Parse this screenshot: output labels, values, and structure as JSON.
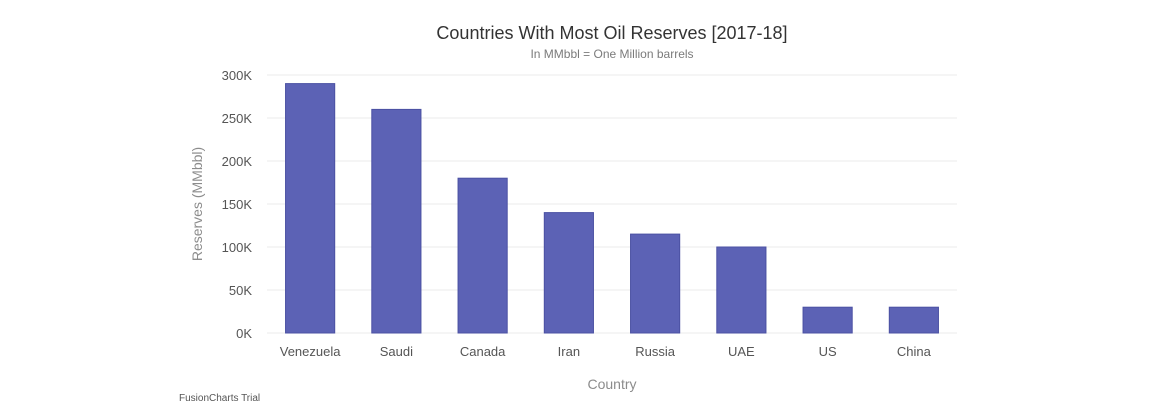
{
  "chart_data": {
    "type": "bar",
    "title": "Countries With Most Oil Reserves [2017-18]",
    "subtitle": "In MMbbl = One Million barrels",
    "xlabel": "Country",
    "ylabel": "Reserves (MMbbl)",
    "categories": [
      "Venezuela",
      "Saudi",
      "Canada",
      "Iran",
      "Russia",
      "UAE",
      "US",
      "China"
    ],
    "values": [
      290000,
      260000,
      180000,
      140000,
      115000,
      100000,
      30000,
      30000
    ],
    "ylim": [
      0,
      300000
    ],
    "yticks": [
      0,
      50000,
      100000,
      150000,
      200000,
      250000,
      300000
    ],
    "ytick_labels": [
      "0K",
      "50K",
      "100K",
      "150K",
      "200K",
      "250K",
      "300K"
    ],
    "grid": true,
    "bar_color": "#5c62b5"
  },
  "credit": "FusionCharts Trial"
}
